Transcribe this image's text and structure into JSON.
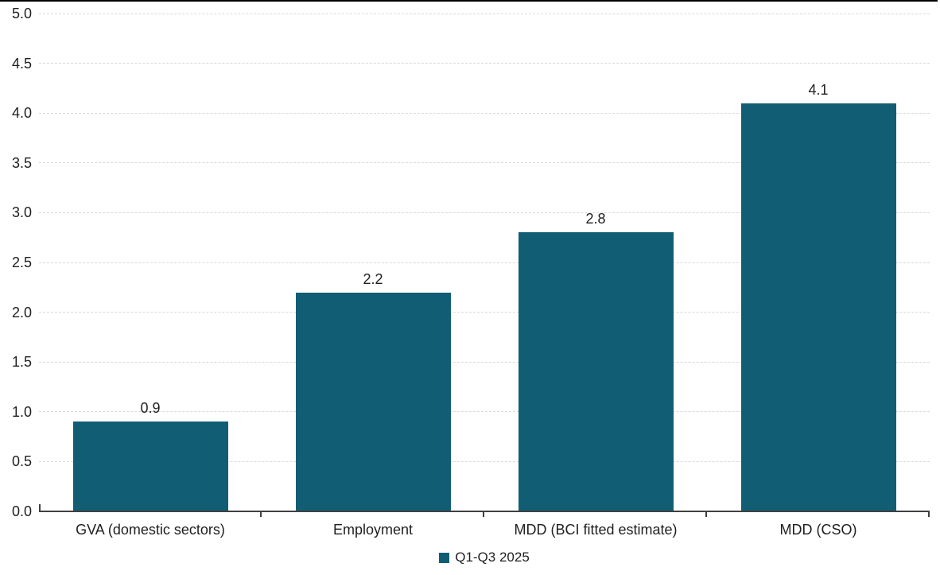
{
  "chart_data": {
    "type": "bar",
    "title": "",
    "xlabel": "",
    "ylabel": "",
    "categories": [
      "GVA (domestic sectors)",
      "Employment",
      "MDD (BCI fitted estimate)",
      "MDD (CSO)"
    ],
    "series": [
      {
        "name": "Q1-Q3 2025",
        "values": [
          0.9,
          2.2,
          2.8,
          4.1
        ]
      }
    ],
    "value_labels": [
      "0.9",
      "2.2",
      "2.8",
      "4.1"
    ],
    "ylim": [
      0.0,
      5.0
    ],
    "ytick_step": 0.5,
    "ytick_labels": [
      "0.0",
      "0.5",
      "1.0",
      "1.5",
      "2.0",
      "2.5",
      "3.0",
      "3.5",
      "4.0",
      "4.5",
      "5.0"
    ],
    "grid": "horizontal-dashed",
    "legend_position": "bottom-center",
    "bar_color": "#115E74"
  },
  "legend": {
    "items": [
      {
        "label": "Q1-Q3 2025",
        "color": "#115E74"
      }
    ]
  },
  "colors": {
    "bar": "#115E74",
    "gridline": "#D9D9D9",
    "axis": "#404040",
    "text": "#1F1F1F",
    "top_border": "#000000"
  }
}
